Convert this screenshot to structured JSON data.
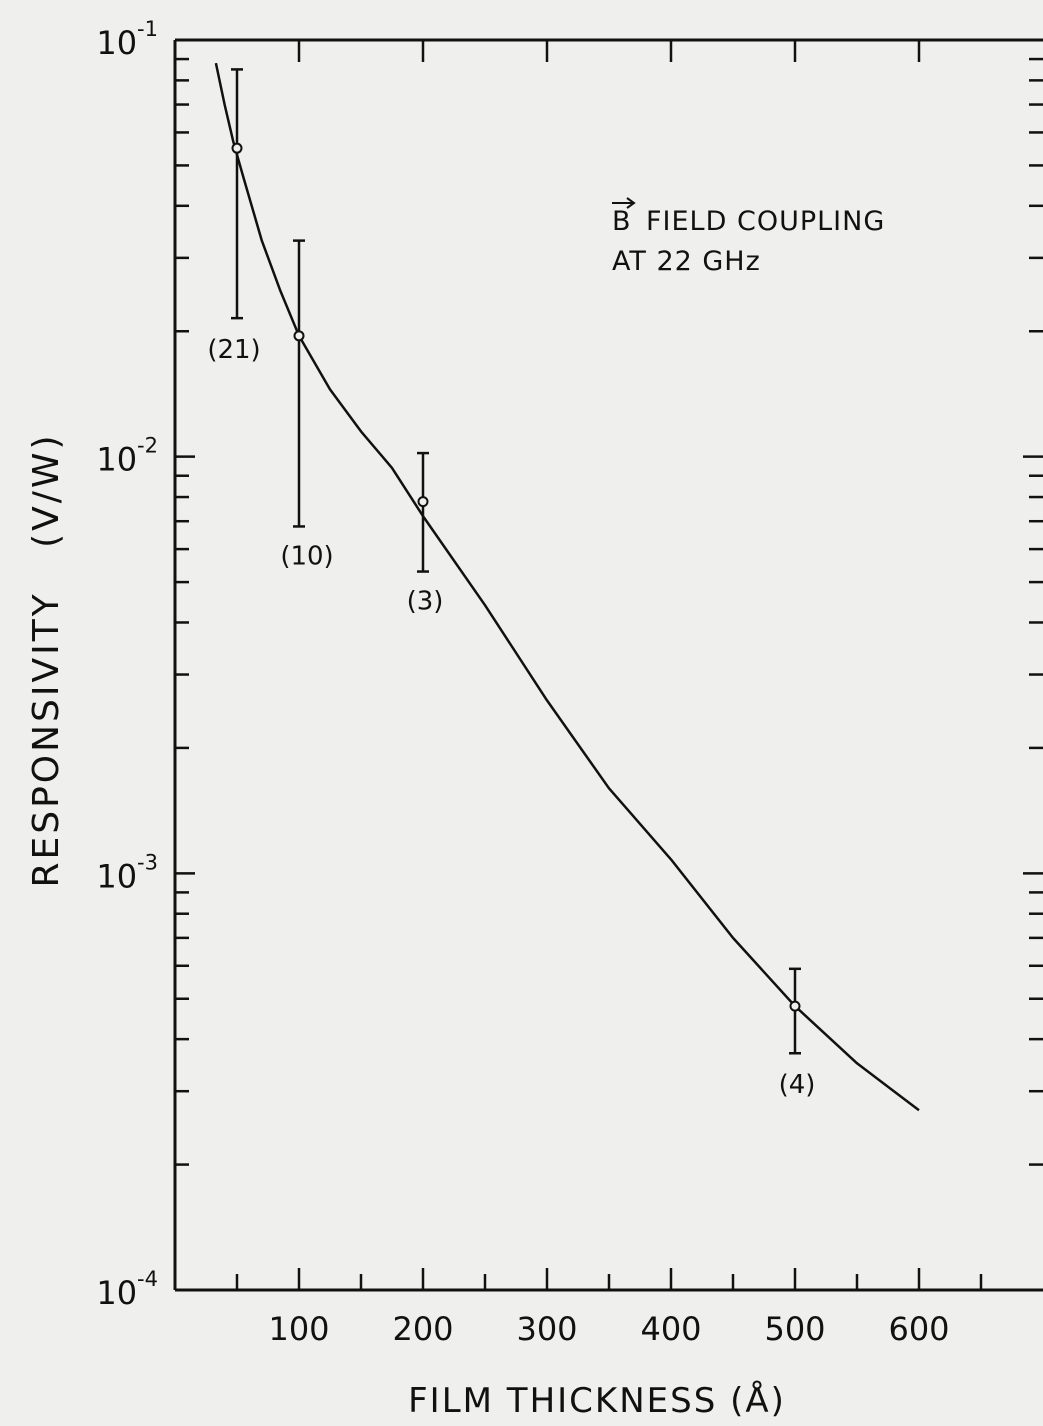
{
  "chart_data": {
    "type": "line",
    "title": "",
    "annotation": {
      "symbol": "B",
      "line1": "FIELD COUPLING",
      "line2": "AT 22 GHz"
    },
    "xlabel": "FILM THICKNESS (Å)",
    "ylabel": "RESPONSIVITY   (V/W)",
    "x_ticks": [
      "100",
      "200",
      "300",
      "400",
      "500",
      "600"
    ],
    "y_ticks": [
      {
        "value": 0.0001,
        "base": "10",
        "exp": "-4"
      },
      {
        "value": 0.001,
        "base": "10",
        "exp": "-3"
      },
      {
        "value": 0.01,
        "base": "10",
        "exp": "-2"
      },
      {
        "value": 0.1,
        "base": "10",
        "exp": "-1"
      }
    ],
    "xlim": [
      0,
      700
    ],
    "ylim": [
      0.0001,
      0.1
    ],
    "y_scale": "log",
    "grid": false,
    "points": [
      {
        "x": 50,
        "y": 0.055,
        "y_low": 0.0215,
        "y_high": 0.085,
        "label": "(21)"
      },
      {
        "x": 100,
        "y": 0.0195,
        "y_low": 0.0068,
        "y_high": 0.033,
        "label": "(10)"
      },
      {
        "x": 200,
        "y": 0.0078,
        "y_low": 0.0053,
        "y_high": 0.0102,
        "label": "(3)"
      },
      {
        "x": 500,
        "y": 0.00048,
        "y_low": 0.00037,
        "y_high": 0.00059,
        "label": "(4)"
      }
    ],
    "curve": {
      "x": [
        33,
        40,
        47,
        55,
        70,
        85,
        100,
        125,
        150,
        175,
        200,
        250,
        300,
        350,
        400,
        450,
        500,
        550,
        600
      ],
      "y": [
        0.088,
        0.07,
        0.057,
        0.047,
        0.033,
        0.025,
        0.0195,
        0.0145,
        0.0115,
        0.0094,
        0.0072,
        0.0044,
        0.0026,
        0.0016,
        0.00108,
        0.0007,
        0.00048,
        0.00035,
        0.00027
      ]
    }
  }
}
